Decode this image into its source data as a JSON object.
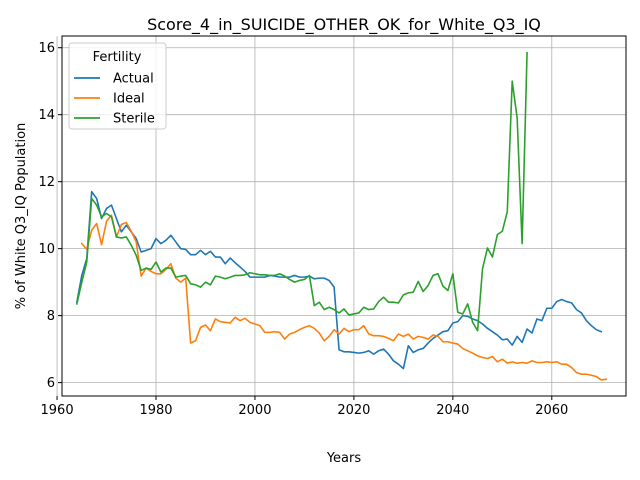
{
  "chart_data": {
    "type": "line",
    "title": "Score_4_in_SUICIDE_OTHER_OK_for_White_Q3_IQ",
    "xlabel": "Years",
    "ylabel": "% of White Q3_IQ Population",
    "xlim": [
      1961,
      2075
    ],
    "ylim": [
      5.6,
      16.35
    ],
    "xticks": [
      1960,
      1980,
      2000,
      2020,
      2040,
      2060
    ],
    "yticks": [
      6,
      8,
      10,
      12,
      14,
      16
    ],
    "grid": true,
    "legend": {
      "title": "Fertility",
      "placement": "top-left"
    },
    "series": [
      {
        "name": "Actual",
        "color": "#1f77b4",
        "points": [
          [
            1964,
            8.4
          ],
          [
            1965,
            9.2
          ],
          [
            1966,
            9.7
          ],
          [
            1967,
            11.7
          ],
          [
            1968,
            11.5
          ],
          [
            1969,
            10.9
          ],
          [
            1970,
            11.2
          ],
          [
            1971,
            11.3
          ],
          [
            1972,
            10.9
          ],
          [
            1973,
            10.5
          ],
          [
            1974,
            10.7
          ],
          [
            1975,
            10.5
          ],
          [
            1976,
            10.3
          ],
          [
            1977,
            9.9
          ],
          [
            1978,
            9.95
          ],
          [
            1979,
            10.0
          ],
          [
            1980,
            10.3
          ],
          [
            1981,
            10.15
          ],
          [
            1982,
            10.25
          ],
          [
            1983,
            10.4
          ],
          [
            1984,
            10.2
          ],
          [
            1985,
            10.0
          ],
          [
            1986,
            9.98
          ],
          [
            1987,
            9.82
          ],
          [
            1988,
            9.82
          ],
          [
            1989,
            9.95
          ],
          [
            1990,
            9.82
          ],
          [
            1991,
            9.92
          ],
          [
            1992,
            9.75
          ],
          [
            1993,
            9.75
          ],
          [
            1994,
            9.55
          ],
          [
            1995,
            9.72
          ],
          [
            1996,
            9.58
          ],
          [
            1997,
            9.45
          ],
          [
            1998,
            9.32
          ],
          [
            1999,
            9.15
          ],
          [
            2000,
            9.15
          ],
          [
            2001,
            9.15
          ],
          [
            2002,
            9.15
          ],
          [
            2003,
            9.2
          ],
          [
            2004,
            9.18
          ],
          [
            2005,
            9.15
          ],
          [
            2006,
            9.15
          ],
          [
            2007,
            9.15
          ],
          [
            2008,
            9.2
          ],
          [
            2009,
            9.15
          ],
          [
            2010,
            9.15
          ],
          [
            2011,
            9.18
          ],
          [
            2012,
            9.1
          ],
          [
            2013,
            9.12
          ],
          [
            2014,
            9.12
          ],
          [
            2015,
            9.05
          ],
          [
            2016,
            8.85
          ],
          [
            2017,
            6.98
          ],
          [
            2018,
            6.92
          ],
          [
            2019,
            6.92
          ],
          [
            2020,
            6.9
          ],
          [
            2021,
            6.88
          ],
          [
            2022,
            6.9
          ],
          [
            2023,
            6.95
          ],
          [
            2024,
            6.85
          ],
          [
            2025,
            6.95
          ],
          [
            2026,
            7.0
          ],
          [
            2027,
            6.85
          ],
          [
            2028,
            6.65
          ],
          [
            2029,
            6.55
          ],
          [
            2030,
            6.42
          ],
          [
            2031,
            7.1
          ],
          [
            2032,
            6.9
          ],
          [
            2033,
            6.98
          ],
          [
            2034,
            7.02
          ],
          [
            2035,
            7.18
          ],
          [
            2036,
            7.32
          ],
          [
            2037,
            7.42
          ],
          [
            2038,
            7.52
          ],
          [
            2039,
            7.55
          ],
          [
            2040,
            7.78
          ],
          [
            2041,
            7.82
          ],
          [
            2042,
            8.0
          ],
          [
            2043,
            7.98
          ],
          [
            2044,
            7.9
          ],
          [
            2045,
            7.85
          ],
          [
            2046,
            7.75
          ],
          [
            2047,
            7.62
          ],
          [
            2048,
            7.52
          ],
          [
            2049,
            7.42
          ],
          [
            2050,
            7.28
          ],
          [
            2051,
            7.3
          ],
          [
            2052,
            7.12
          ],
          [
            2053,
            7.38
          ],
          [
            2054,
            7.2
          ],
          [
            2055,
            7.6
          ],
          [
            2056,
            7.48
          ],
          [
            2057,
            7.9
          ],
          [
            2058,
            7.85
          ],
          [
            2059,
            8.22
          ],
          [
            2060,
            8.22
          ],
          [
            2061,
            8.42
          ],
          [
            2062,
            8.48
          ],
          [
            2063,
            8.42
          ],
          [
            2064,
            8.38
          ],
          [
            2065,
            8.18
          ],
          [
            2066,
            8.08
          ],
          [
            2067,
            7.85
          ],
          [
            2068,
            7.7
          ],
          [
            2069,
            7.58
          ],
          [
            2070,
            7.52
          ]
        ]
      },
      {
        "name": "Ideal",
        "color": "#ff7f0e",
        "points": [
          [
            1965,
            10.15
          ],
          [
            1966,
            9.98
          ],
          [
            1967,
            10.55
          ],
          [
            1968,
            10.75
          ],
          [
            1969,
            10.12
          ],
          [
            1970,
            10.82
          ],
          [
            1971,
            11.0
          ],
          [
            1972,
            10.35
          ],
          [
            1973,
            10.72
          ],
          [
            1974,
            10.78
          ],
          [
            1975,
            10.52
          ],
          [
            1976,
            10.2
          ],
          [
            1977,
            9.18
          ],
          [
            1978,
            9.42
          ],
          [
            1979,
            9.32
          ],
          [
            1980,
            9.25
          ],
          [
            1981,
            9.25
          ],
          [
            1982,
            9.38
          ],
          [
            1983,
            9.55
          ],
          [
            1984,
            9.12
          ],
          [
            1985,
            9.0
          ],
          [
            1986,
            9.12
          ],
          [
            1987,
            7.18
          ],
          [
            1988,
            7.25
          ],
          [
            1989,
            7.65
          ],
          [
            1990,
            7.72
          ],
          [
            1991,
            7.55
          ],
          [
            1992,
            7.9
          ],
          [
            1993,
            7.82
          ],
          [
            1994,
            7.8
          ],
          [
            1995,
            7.78
          ],
          [
            1996,
            7.95
          ],
          [
            1997,
            7.85
          ],
          [
            1998,
            7.92
          ],
          [
            1999,
            7.8
          ],
          [
            2000,
            7.75
          ],
          [
            2001,
            7.7
          ],
          [
            2002,
            7.5
          ],
          [
            2003,
            7.5
          ],
          [
            2004,
            7.52
          ],
          [
            2005,
            7.5
          ],
          [
            2006,
            7.3
          ],
          [
            2007,
            7.45
          ],
          [
            2008,
            7.5
          ],
          [
            2009,
            7.58
          ],
          [
            2010,
            7.65
          ],
          [
            2011,
            7.7
          ],
          [
            2012,
            7.62
          ],
          [
            2013,
            7.48
          ],
          [
            2014,
            7.25
          ],
          [
            2015,
            7.38
          ],
          [
            2016,
            7.58
          ],
          [
            2017,
            7.45
          ],
          [
            2018,
            7.62
          ],
          [
            2019,
            7.52
          ],
          [
            2020,
            7.58
          ],
          [
            2021,
            7.58
          ],
          [
            2022,
            7.7
          ],
          [
            2023,
            7.45
          ],
          [
            2024,
            7.4
          ],
          [
            2025,
            7.4
          ],
          [
            2026,
            7.38
          ],
          [
            2027,
            7.32
          ],
          [
            2028,
            7.25
          ],
          [
            2029,
            7.45
          ],
          [
            2030,
            7.38
          ],
          [
            2031,
            7.45
          ],
          [
            2032,
            7.3
          ],
          [
            2033,
            7.38
          ],
          [
            2034,
            7.35
          ],
          [
            2035,
            7.3
          ],
          [
            2036,
            7.42
          ],
          [
            2037,
            7.38
          ],
          [
            2038,
            7.22
          ],
          [
            2039,
            7.22
          ],
          [
            2040,
            7.18
          ],
          [
            2041,
            7.15
          ],
          [
            2042,
            7.02
          ],
          [
            2043,
            6.95
          ],
          [
            2044,
            6.88
          ],
          [
            2045,
            6.8
          ],
          [
            2046,
            6.75
          ],
          [
            2047,
            6.72
          ],
          [
            2048,
            6.78
          ],
          [
            2049,
            6.62
          ],
          [
            2050,
            6.7
          ],
          [
            2051,
            6.58
          ],
          [
            2052,
            6.62
          ],
          [
            2053,
            6.58
          ],
          [
            2054,
            6.6
          ],
          [
            2055,
            6.58
          ],
          [
            2056,
            6.65
          ],
          [
            2057,
            6.6
          ],
          [
            2058,
            6.6
          ],
          [
            2059,
            6.62
          ],
          [
            2060,
            6.6
          ],
          [
            2061,
            6.62
          ],
          [
            2062,
            6.55
          ],
          [
            2063,
            6.55
          ],
          [
            2064,
            6.45
          ],
          [
            2065,
            6.3
          ],
          [
            2066,
            6.25
          ],
          [
            2067,
            6.25
          ],
          [
            2068,
            6.22
          ],
          [
            2069,
            6.18
          ],
          [
            2070,
            6.08
          ],
          [
            2071,
            6.1
          ]
        ]
      },
      {
        "name": "Sterile",
        "color": "#2ca02c",
        "points": [
          [
            1964,
            8.35
          ],
          [
            1965,
            9.0
          ],
          [
            1966,
            9.6
          ],
          [
            1967,
            11.5
          ],
          [
            1968,
            11.3
          ],
          [
            1969,
            10.95
          ],
          [
            1970,
            11.05
          ],
          [
            1971,
            10.95
          ],
          [
            1972,
            10.35
          ],
          [
            1973,
            10.32
          ],
          [
            1974,
            10.35
          ],
          [
            1975,
            10.1
          ],
          [
            1976,
            9.8
          ],
          [
            1977,
            9.35
          ],
          [
            1978,
            9.42
          ],
          [
            1979,
            9.38
          ],
          [
            1980,
            9.6
          ],
          [
            1981,
            9.3
          ],
          [
            1982,
            9.42
          ],
          [
            1983,
            9.42
          ],
          [
            1984,
            9.15
          ],
          [
            1985,
            9.18
          ],
          [
            1986,
            9.2
          ],
          [
            1987,
            8.95
          ],
          [
            1988,
            8.92
          ],
          [
            1989,
            8.85
          ],
          [
            1990,
            9.0
          ],
          [
            1991,
            8.92
          ],
          [
            1992,
            9.18
          ],
          [
            1993,
            9.15
          ],
          [
            1994,
            9.1
          ],
          [
            1995,
            9.15
          ],
          [
            1996,
            9.2
          ],
          [
            1997,
            9.2
          ],
          [
            1998,
            9.22
          ],
          [
            1999,
            9.28
          ],
          [
            2000,
            9.25
          ],
          [
            2001,
            9.22
          ],
          [
            2002,
            9.22
          ],
          [
            2003,
            9.2
          ],
          [
            2004,
            9.2
          ],
          [
            2005,
            9.25
          ],
          [
            2006,
            9.18
          ],
          [
            2007,
            9.08
          ],
          [
            2008,
            9.0
          ],
          [
            2009,
            9.05
          ],
          [
            2010,
            9.08
          ],
          [
            2011,
            9.2
          ],
          [
            2012,
            8.3
          ],
          [
            2013,
            8.4
          ],
          [
            2014,
            8.18
          ],
          [
            2015,
            8.25
          ],
          [
            2016,
            8.18
          ],
          [
            2017,
            8.08
          ],
          [
            2018,
            8.2
          ],
          [
            2019,
            8.02
          ],
          [
            2020,
            8.05
          ],
          [
            2021,
            8.08
          ],
          [
            2022,
            8.25
          ],
          [
            2023,
            8.18
          ],
          [
            2024,
            8.2
          ],
          [
            2025,
            8.42
          ],
          [
            2026,
            8.55
          ],
          [
            2027,
            8.4
          ],
          [
            2028,
            8.4
          ],
          [
            2029,
            8.38
          ],
          [
            2030,
            8.62
          ],
          [
            2031,
            8.68
          ],
          [
            2032,
            8.7
          ],
          [
            2033,
            9.02
          ],
          [
            2034,
            8.72
          ],
          [
            2035,
            8.9
          ],
          [
            2036,
            9.2
          ],
          [
            2037,
            9.25
          ],
          [
            2038,
            8.88
          ],
          [
            2039,
            8.75
          ],
          [
            2040,
            9.25
          ],
          [
            2041,
            8.1
          ],
          [
            2042,
            8.05
          ],
          [
            2043,
            8.35
          ],
          [
            2044,
            7.8
          ],
          [
            2045,
            7.55
          ],
          [
            2046,
            9.4
          ],
          [
            2047,
            10.02
          ],
          [
            2048,
            9.75
          ],
          [
            2049,
            10.42
          ],
          [
            2050,
            10.52
          ],
          [
            2051,
            11.1
          ],
          [
            2052,
            15.0
          ],
          [
            2053,
            13.9
          ],
          [
            2054,
            10.15
          ],
          [
            2055,
            15.85
          ]
        ]
      }
    ]
  }
}
